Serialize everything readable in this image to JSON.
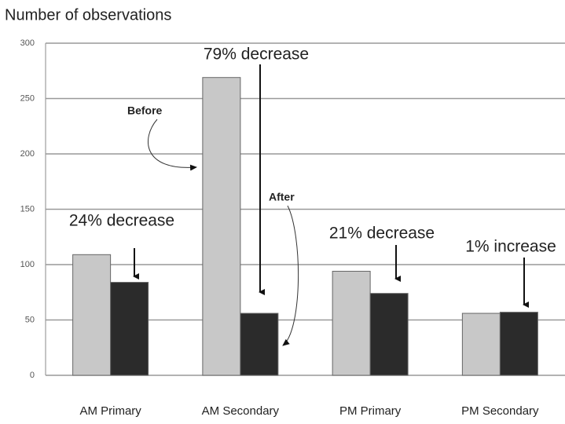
{
  "chart_data": {
    "type": "bar",
    "title": "Number of observations",
    "categories": [
      "AM Primary",
      "AM Secondary",
      "PM Primary",
      "PM Secondary"
    ],
    "series": [
      {
        "name": "Before",
        "color": "#c8c8c8",
        "values": [
          109,
          269,
          94,
          56
        ]
      },
      {
        "name": "After",
        "color": "#2b2b2b",
        "values": [
          84,
          56,
          74,
          57
        ]
      }
    ],
    "annotations": [
      "24% decrease",
      "79% decrease",
      "21% decrease",
      "1% increase"
    ],
    "ylim": [
      0,
      300
    ],
    "yticks": [
      0,
      50,
      100,
      150,
      200,
      250,
      300
    ],
    "grid": true
  }
}
